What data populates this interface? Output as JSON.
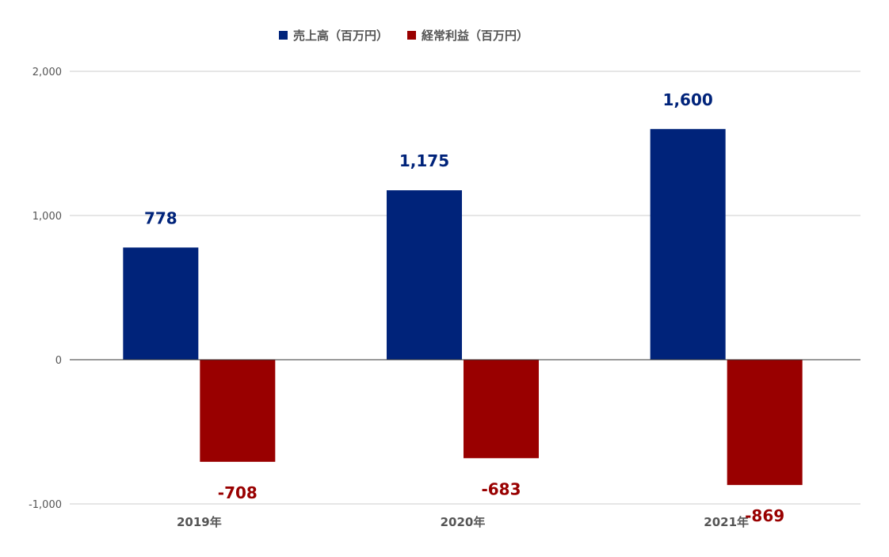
{
  "chart_data": {
    "type": "bar",
    "categories": [
      "2019年",
      "2020年",
      "2021年"
    ],
    "series": [
      {
        "name": "売上高（百万円）",
        "color": "#00237a",
        "values": [
          778,
          1175,
          1600
        ],
        "labels": [
          "778",
          "1,175",
          "1,600"
        ]
      },
      {
        "name": "経常利益（百万円）",
        "color": "#990000",
        "values": [
          -708,
          -683,
          -869
        ],
        "labels": [
          "-708",
          "-683",
          "-869"
        ]
      }
    ],
    "ylim": [
      -1000,
      2000
    ],
    "yticks": [
      2000,
      1000,
      0,
      -1000
    ],
    "ytick_labels": [
      "2,000",
      "1,000",
      "0",
      "-1,000"
    ],
    "grid": true,
    "legend": "top-center",
    "title": "",
    "xlabel": "",
    "ylabel": ""
  }
}
